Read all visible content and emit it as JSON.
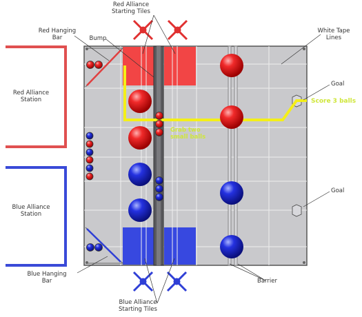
{
  "labels": {
    "red_alliance_starting_tiles": [
      "Red Alliance",
      "Starting Tiles"
    ],
    "blue_alliance_starting_tiles": [
      "Blue Alliance",
      "Starting Tiles"
    ],
    "red_hanging_bar": [
      "Red Hanging",
      "Bar"
    ],
    "blue_hanging_bar": [
      "Blue Hanging",
      "Bar"
    ],
    "bump": "Bump",
    "white_tape_lines": [
      "White Tape",
      "Lines"
    ],
    "goal_top": "Goal",
    "goal_bottom": "Goal",
    "red_alliance_station": [
      "Red Alliance",
      "Station"
    ],
    "blue_alliance_station": [
      "Blue Alliance",
      "Station"
    ],
    "barrier": "Barrier",
    "score_3_balls": "Score 3 balls",
    "grab_two_small_balls": [
      "Grab two",
      "small balls"
    ]
  },
  "colors": {
    "field_gray": "#c9c9cc",
    "red": "#e53232",
    "blue": "#2f3fd6",
    "path_yellow": "#f4ef18",
    "annotation_green": "#cfe63a"
  }
}
